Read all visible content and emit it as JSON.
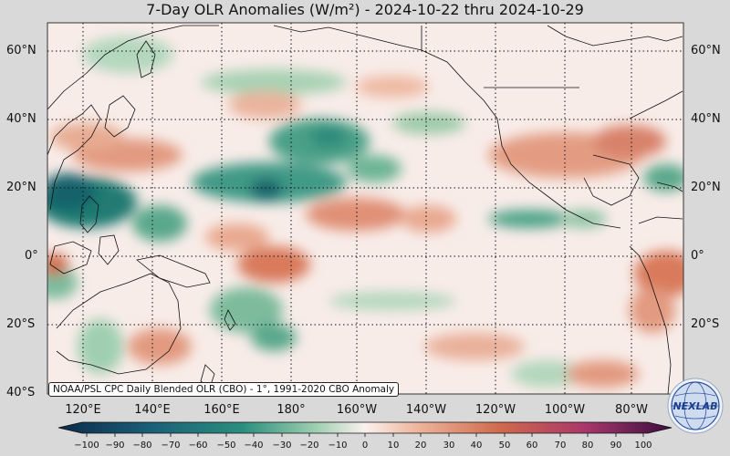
{
  "title": "7-Day OLR Anomalies (W/m²) - 2024-10-22 thru 2024-10-29",
  "map": {
    "lat_labels": [
      "60°N",
      "40°N",
      "20°N",
      "0°",
      "20°S",
      "40°S"
    ],
    "lat_values": [
      60,
      40,
      20,
      0,
      -20,
      -40
    ],
    "lon_labels": [
      "120°E",
      "140°E",
      "160°E",
      "180°",
      "160°W",
      "140°W",
      "120°W",
      "100°W",
      "80°W"
    ],
    "lon_values": [
      120,
      140,
      160,
      180,
      200,
      220,
      240,
      260,
      280
    ],
    "lon_range": [
      110,
      290
    ],
    "lat_range": [
      -40,
      68
    ],
    "gridlines": "dotted"
  },
  "credit": "NOAA/PSL CPC Daily Blended OLR (CBO) - 1°, 1991-2020 CBO Anomaly",
  "colorbar": {
    "ticks": [
      "−100",
      "−90",
      "−80",
      "−70",
      "−60",
      "−50",
      "−40",
      "−30",
      "−20",
      "−10",
      "0",
      "10",
      "20",
      "30",
      "40",
      "50",
      "60",
      "70",
      "80",
      "90",
      "100"
    ],
    "range": [
      -100,
      100
    ],
    "negative_color": "#1a7f72",
    "positive_color": "#cf6a4c"
  },
  "logo": {
    "text": "NEXLAB",
    "icon": "nexlab-globe-logo"
  }
}
